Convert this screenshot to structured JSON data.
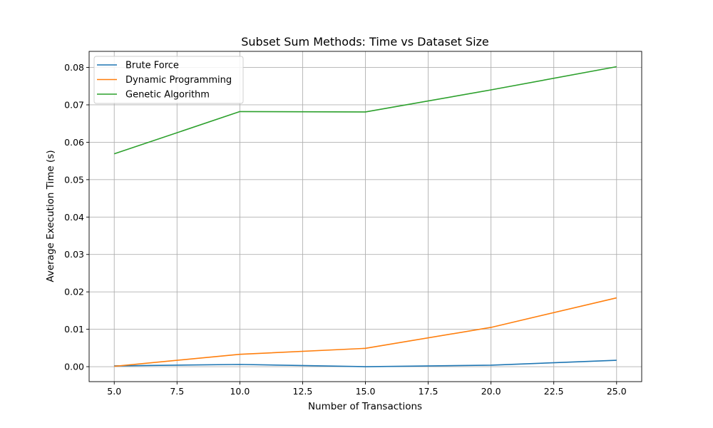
{
  "chart_data": {
    "type": "line",
    "title": "Subset Sum Methods: Time vs Dataset Size",
    "xlabel": "Number of Transactions",
    "ylabel": "Average Execution Time (s)",
    "x": [
      5,
      10,
      15,
      20,
      25
    ],
    "xlim": [
      4.0,
      26.0
    ],
    "ylim": [
      -0.004,
      0.0843
    ],
    "xticks": [
      5.0,
      7.5,
      10.0,
      12.5,
      15.0,
      17.5,
      20.0,
      22.5,
      25.0
    ],
    "xtick_labels": [
      "5.0",
      "7.5",
      "10.0",
      "12.5",
      "15.0",
      "17.5",
      "20.0",
      "22.5",
      "25.0"
    ],
    "yticks": [
      0.0,
      0.01,
      0.02,
      0.03,
      0.04,
      0.05,
      0.06,
      0.07,
      0.08
    ],
    "ytick_labels": [
      "0.00",
      "0.01",
      "0.02",
      "0.03",
      "0.04",
      "0.05",
      "0.06",
      "0.07",
      "0.08"
    ],
    "grid": true,
    "legend_position": "top-left",
    "series": [
      {
        "name": "Brute Force",
        "color": "#1f77b4",
        "values": [
          0.0002,
          0.0006,
          0.0,
          0.0004,
          0.0017
        ]
      },
      {
        "name": "Dynamic Programming",
        "color": "#ff7f0e",
        "values": [
          0.0001,
          0.0033,
          0.0049,
          0.0105,
          0.0184
        ]
      },
      {
        "name": "Genetic Algorithm",
        "color": "#2ca02c",
        "values": [
          0.0569,
          0.0682,
          0.0681,
          0.074,
          0.0802
        ]
      }
    ]
  }
}
